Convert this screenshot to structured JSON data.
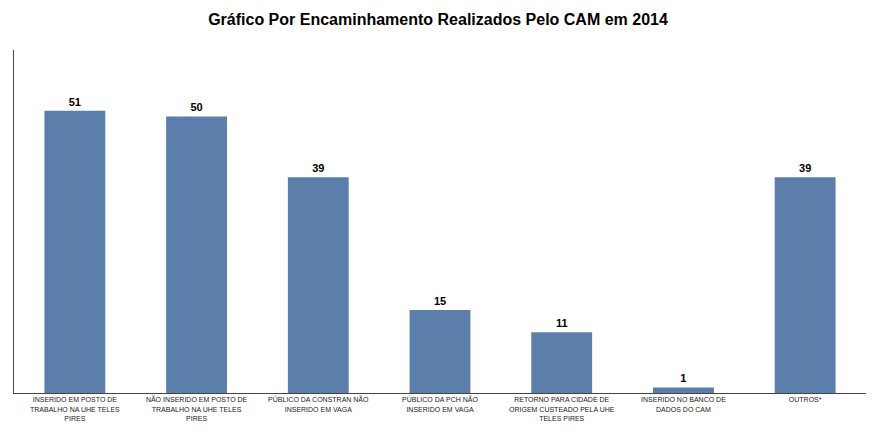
{
  "chart_data": {
    "type": "bar",
    "title": "Gráfico Por Encaminhamento Realizados Pelo CAM em 2014",
    "categories": [
      "INSERIDO EM POSTO DE\nTRABALHO NA UHE TELES\nPIRES",
      "NÃO INSERIDO EM POSTO DE\nTRABALHO NA UHE TELES\nPIRES",
      "PÚBLICO DA CONSTRAN NÃO\nINSERIDO EM VAGA",
      "PÚBLICO DA PCH NÃO\nINSERIDO EM VAGA",
      "RETORNO PARA CIDADE DE\nORIGEM CUSTEADO PELA UHE\nTELES PIRES",
      "INSERIDO NO BANCO DE\nDADOS DO CAM",
      "OUTROS*"
    ],
    "values": [
      51,
      50,
      39,
      15,
      11,
      1,
      39
    ],
    "color": "#5b7faa",
    "ylim": [
      0,
      62
    ],
    "yticks": [],
    "grid": false,
    "data_labels": true,
    "tick_labels": "x"
  }
}
